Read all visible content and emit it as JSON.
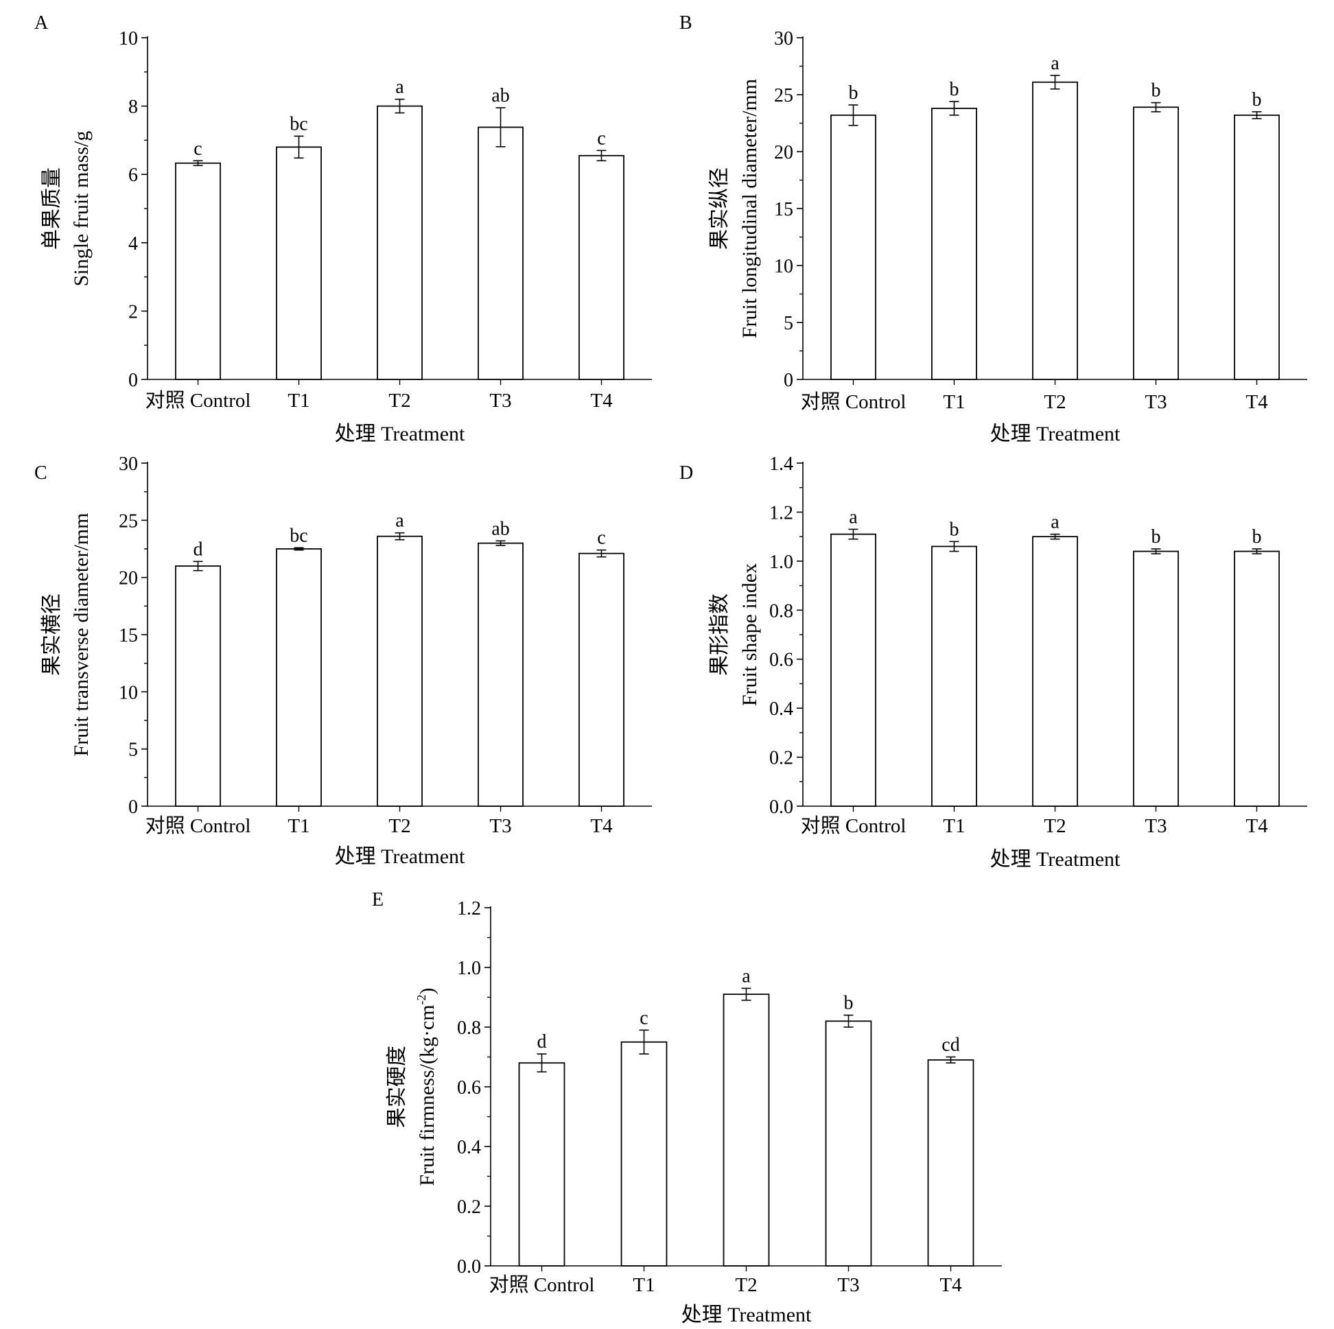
{
  "figure": {
    "background": "#ffffff",
    "bar_fill": "#ffffff",
    "stroke": "#000000"
  },
  "chart_data": [
    {
      "panel": "A",
      "type": "bar",
      "categories": [
        "对照 Control",
        "T1",
        "T2",
        "T3",
        "T4"
      ],
      "values": [
        6.33,
        6.8,
        8.0,
        7.38,
        6.55
      ],
      "errors": [
        0.07,
        0.32,
        0.2,
        0.57,
        0.15
      ],
      "letters": [
        "c",
        "bc",
        "a",
        "ab",
        "c"
      ],
      "ylabel_zh": "单果质量",
      "ylabel_en": "Single fruit mass/g",
      "xlabel": "处理  Treatment",
      "ylim": [
        0,
        10
      ],
      "yticks": [
        "0",
        "2",
        "4",
        "6",
        "8",
        "10"
      ]
    },
    {
      "panel": "B",
      "type": "bar",
      "categories": [
        "对照 Control",
        "T1",
        "T2",
        "T3",
        "T4"
      ],
      "values": [
        23.2,
        23.8,
        26.1,
        23.9,
        23.2
      ],
      "errors": [
        0.9,
        0.6,
        0.6,
        0.4,
        0.3
      ],
      "letters": [
        "b",
        "b",
        "a",
        "b",
        "b"
      ],
      "ylabel_zh": "果实纵径",
      "ylabel_en": "Fruit longitudinal diameter/mm",
      "xlabel": "处理  Treatment",
      "ylim": [
        0,
        30
      ],
      "yticks": [
        "0",
        "5",
        "10",
        "15",
        "20",
        "25",
        "30"
      ]
    },
    {
      "panel": "C",
      "type": "bar",
      "categories": [
        "对照 Control",
        "T1",
        "T2",
        "T3",
        "T4"
      ],
      "values": [
        21.0,
        22.5,
        23.6,
        23.0,
        22.1
      ],
      "errors": [
        0.4,
        0.1,
        0.3,
        0.2,
        0.3
      ],
      "letters": [
        "d",
        "bc",
        "a",
        "ab",
        "c"
      ],
      "ylabel_zh": "果实横径",
      "ylabel_en": "Fruit transverse diameter/mm",
      "xlabel": "处理  Treatment",
      "ylim": [
        0,
        30
      ],
      "yticks": [
        "0",
        "5",
        "10",
        "15",
        "20",
        "25",
        "30"
      ]
    },
    {
      "panel": "D",
      "type": "bar",
      "categories": [
        "对照 Control",
        "T1",
        "T2",
        "T3",
        "T4"
      ],
      "values": [
        1.11,
        1.06,
        1.1,
        1.04,
        1.04
      ],
      "errors": [
        0.02,
        0.02,
        0.01,
        0.01,
        0.01
      ],
      "letters": [
        "a",
        "b",
        "a",
        "b",
        "b"
      ],
      "ylabel_zh": "果形指数",
      "ylabel_en": "Fruit shape index",
      "xlabel": "处理  Treatment",
      "ylim": [
        0,
        1.4
      ],
      "yticks": [
        "0.0",
        "0.2",
        "0.4",
        "0.6",
        "0.8",
        "1.0",
        "1.2",
        "1.4"
      ]
    },
    {
      "panel": "E",
      "type": "bar",
      "categories": [
        "对照 Control",
        "T1",
        "T2",
        "T3",
        "T4"
      ],
      "values": [
        0.68,
        0.75,
        0.91,
        0.82,
        0.69
      ],
      "errors": [
        0.03,
        0.04,
        0.02,
        0.02,
        0.01
      ],
      "letters": [
        "d",
        "c",
        "a",
        "b",
        "cd"
      ],
      "ylabel_zh": "果实硬度",
      "ylabel_en": "Fruit firmness/(kg·cm",
      "ylabel_sup": "-2",
      "ylabel_end": ")",
      "xlabel": "处理  Treatment",
      "ylim": [
        0,
        1.2
      ],
      "yticks": [
        "0.0",
        "0.2",
        "0.4",
        "0.6",
        "0.8",
        "1.0",
        "1.2"
      ]
    }
  ]
}
